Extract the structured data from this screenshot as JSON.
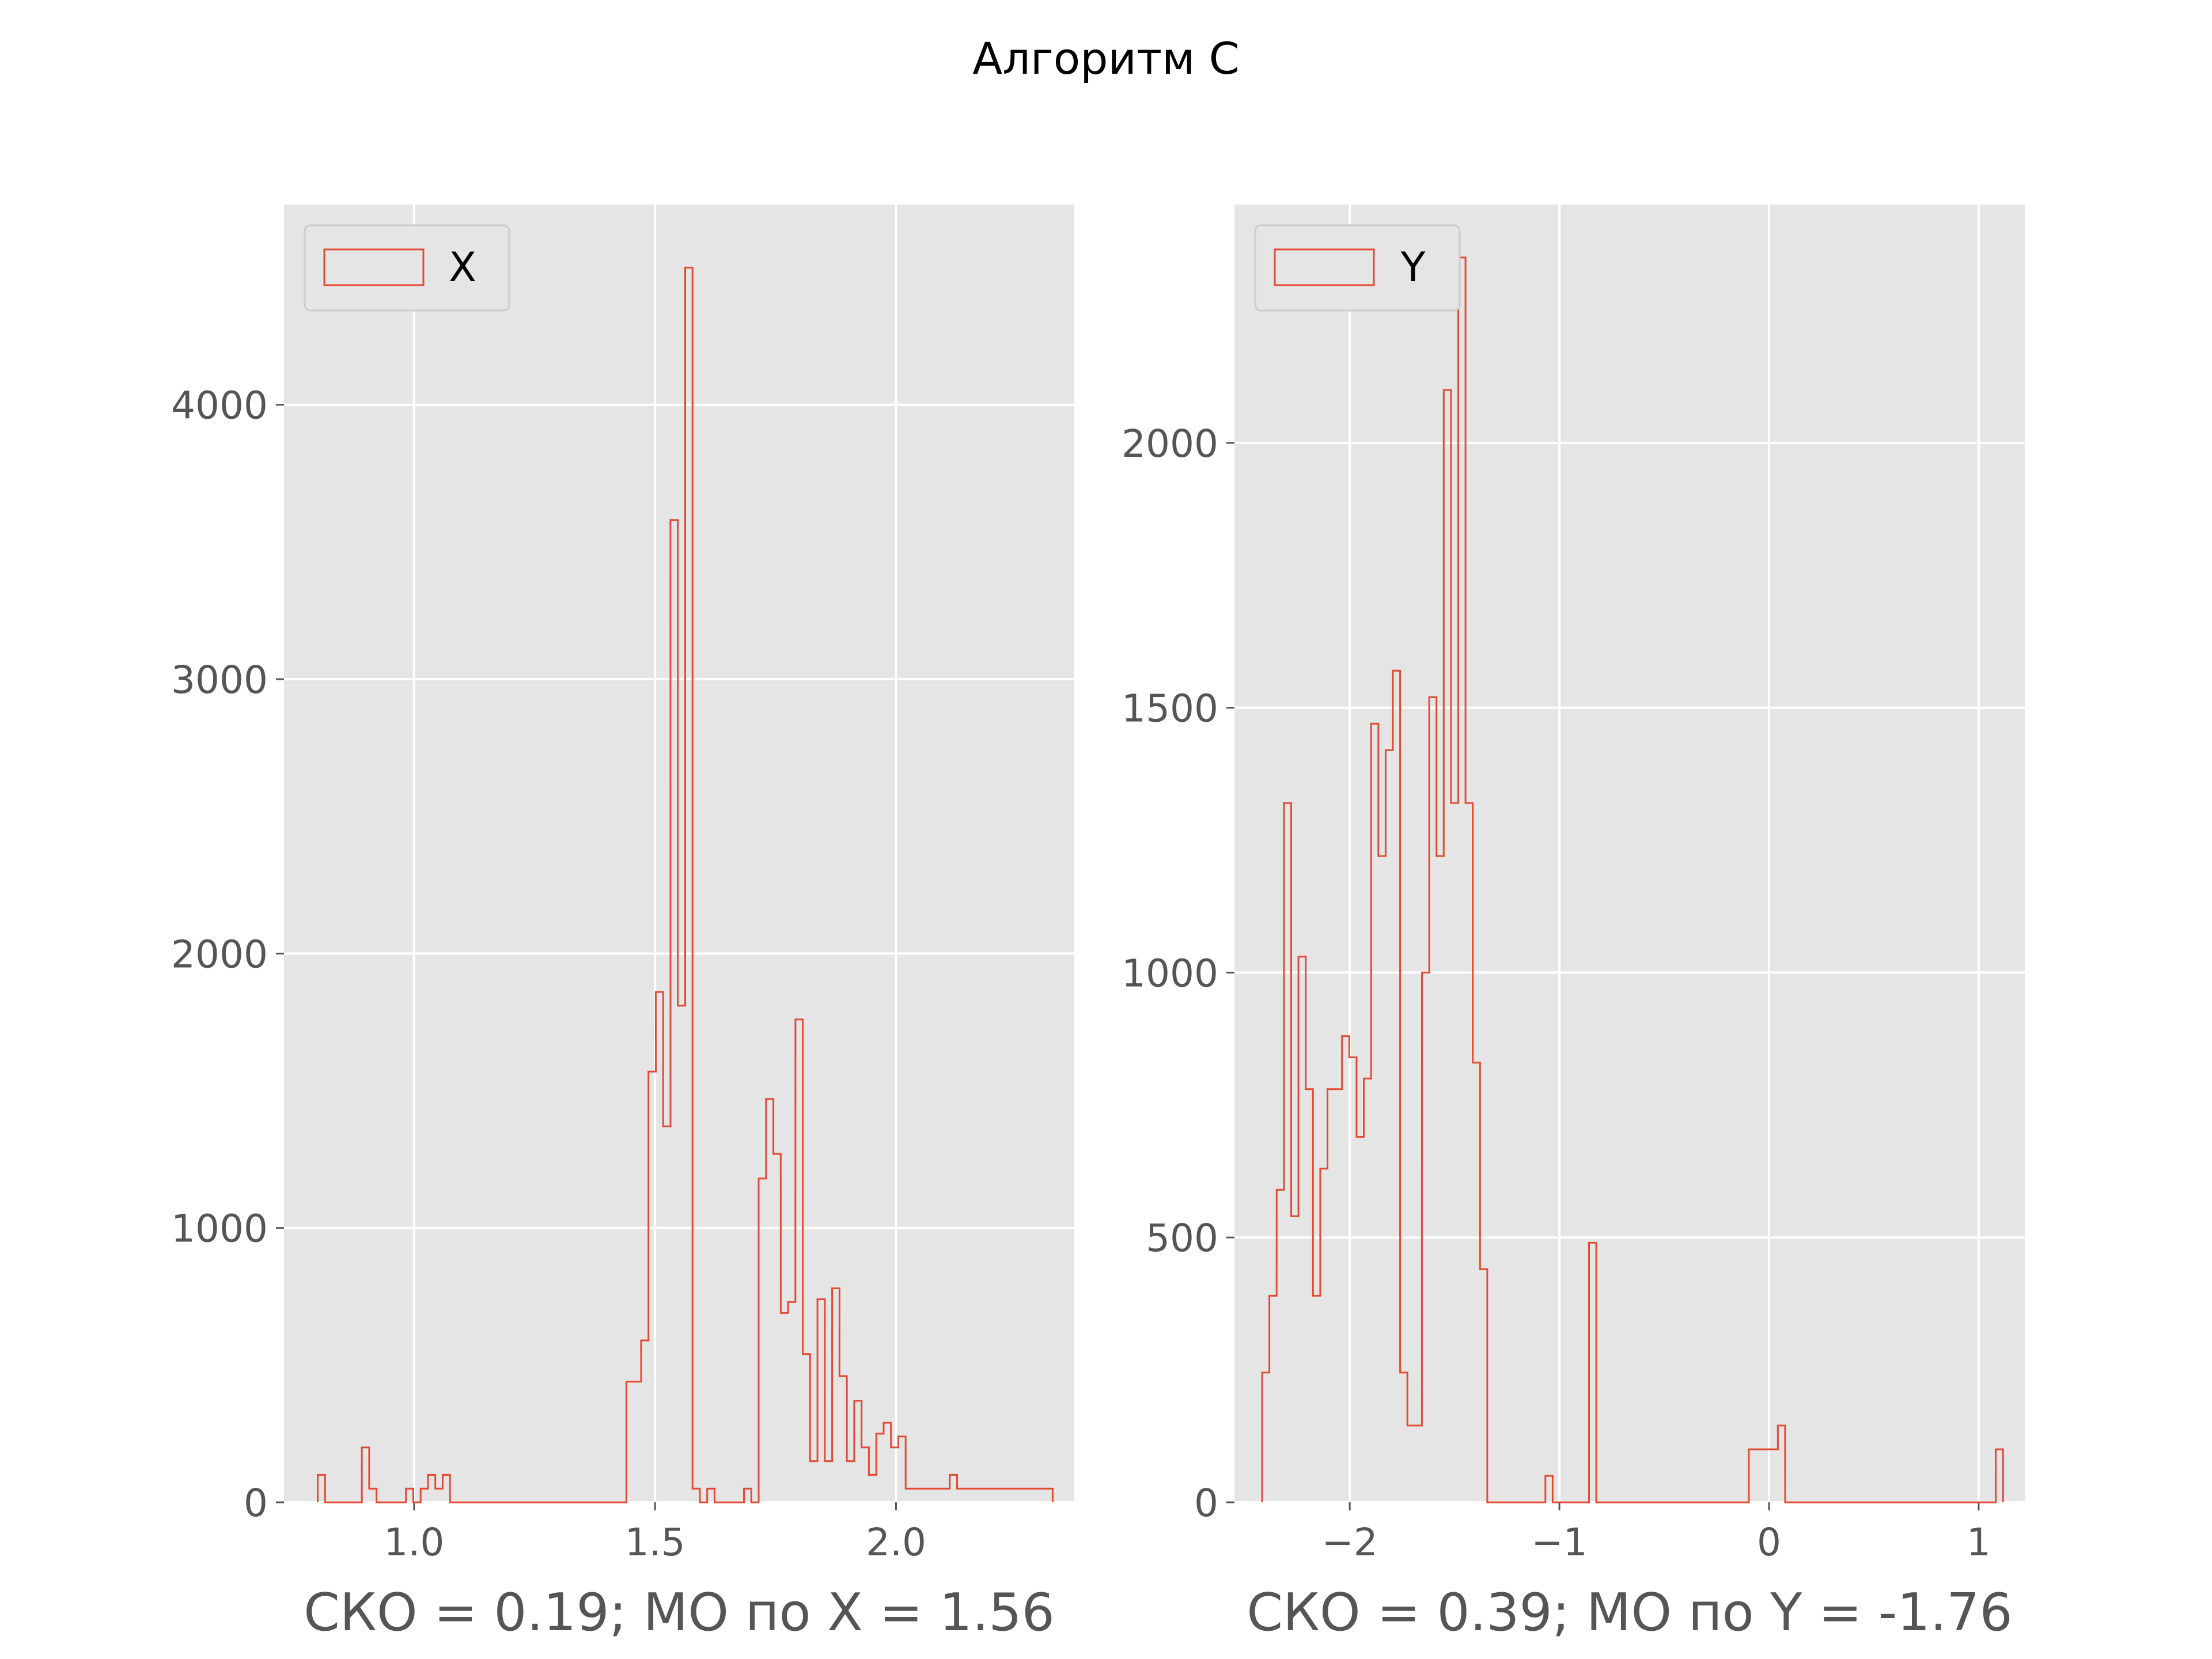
{
  "figure": {
    "title": "Алгоритм C"
  },
  "colors": {
    "axes_background": "#e5e5e5",
    "grid": "#ffffff",
    "series": "#e24a33",
    "tick_text": "#555555"
  },
  "chart_data": [
    {
      "type": "histogram",
      "histtype": "step",
      "legend": [
        "X"
      ],
      "legend_position": "upper-left",
      "xlabel": "СКО = 0.19; МО по X = 1.56",
      "ylabel": "",
      "xlim": [
        0.73,
        2.37
      ],
      "ylim": [
        0,
        4730
      ],
      "xticks": [
        1.0,
        1.5,
        2.0
      ],
      "xtick_labels": [
        "1.0",
        "1.5",
        "2.0"
      ],
      "yticks": [
        0,
        1000,
        2000,
        3000,
        4000
      ],
      "ytick_labels": [
        "0",
        "1000",
        "2000",
        "3000",
        "4000"
      ],
      "grid": true,
      "series": [
        {
          "name": "X",
          "x": [
            0.8,
            0.816,
            0.831,
            0.846,
            0.861,
            0.877,
            0.892,
            0.907,
            0.922,
            0.937,
            0.953,
            0.968,
            0.983,
            0.998,
            1.014,
            1.029,
            1.044,
            1.059,
            1.075,
            1.09,
            1.105,
            1.12,
            1.135,
            1.151,
            1.166,
            1.181,
            1.196,
            1.212,
            1.227,
            1.242,
            1.257,
            1.272,
            1.288,
            1.303,
            1.318,
            1.333,
            1.349,
            1.364,
            1.379,
            1.394,
            1.41,
            1.425,
            1.44,
            1.455,
            1.47,
            1.486,
            1.501,
            1.516,
            1.531,
            1.547,
            1.562,
            1.577,
            1.592,
            1.608,
            1.623,
            1.638,
            1.653,
            1.668,
            1.684,
            1.699,
            1.714,
            1.729,
            1.745,
            1.76,
            1.775,
            1.79,
            1.806,
            1.821,
            1.836,
            1.851,
            1.866,
            1.882,
            1.897,
            1.912,
            1.927,
            1.943,
            1.958,
            1.973,
            1.988,
            2.003,
            2.019,
            2.034,
            2.049,
            2.064,
            2.08,
            2.095,
            2.11,
            2.125,
            2.141,
            2.156,
            2.171,
            2.186,
            2.201,
            2.217,
            2.232,
            2.247,
            2.262,
            2.278,
            2.293,
            2.308
          ],
          "values": [
            100,
            0,
            0,
            0,
            0,
            0,
            0,
            0,
            0,
            0,
            0,
            0,
            0,
            0,
            0,
            0,
            0,
            0,
            0,
            0,
            200,
            50,
            0,
            0,
            0,
            0,
            0,
            0,
            0,
            0,
            0,
            0,
            0,
            0,
            0,
            0,
            0,
            0,
            0,
            0,
            0,
            0,
            0,
            0,
            0,
            0,
            0,
            0,
            0,
            0,
            0,
            0,
            0,
            0,
            0,
            0,
            0,
            0,
            0,
            0,
            0,
            0,
            0,
            0,
            0,
            0,
            0,
            0,
            0,
            0,
            0,
            0,
            0,
            0,
            0,
            0,
            0,
            0,
            0,
            0,
            0,
            0,
            0,
            0,
            0,
            0,
            0,
            0,
            0,
            0,
            0,
            0,
            0,
            0,
            0,
            0,
            0,
            0,
            0,
            0
          ]
        }
      ]
    },
    {
      "type": "histogram",
      "histtype": "step",
      "legend": [
        "Y"
      ],
      "legend_position": "upper-left",
      "xlabel": "СКО = 0.39; МО по Y = -1.76",
      "ylabel": "",
      "xlim": [
        -2.55,
        1.22
      ],
      "ylim": [
        0,
        2450
      ],
      "xticks": [
        -2,
        -1,
        0,
        1
      ],
      "xtick_labels": [
        "−2",
        "−1",
        "0",
        "1"
      ],
      "yticks": [
        0,
        500,
        1000,
        1500,
        2000
      ],
      "ytick_labels": [
        "0",
        "500",
        "1000",
        "1500",
        "2000"
      ],
      "grid": true,
      "series": [
        {
          "name": "Y",
          "x": [
            -2.418,
            -2.383,
            -2.349,
            -2.314,
            -2.279,
            -2.245,
            -2.21,
            -2.175,
            -2.141,
            -2.106,
            -2.071,
            -2.037,
            -2.002,
            -1.967,
            -1.933,
            -1.898,
            -1.863,
            -1.829,
            -1.794,
            -1.759,
            -1.725,
            -1.69,
            -1.655,
            -1.621,
            -1.586,
            -1.551,
            -1.517,
            -1.482,
            -1.447,
            -1.413,
            -1.378,
            -1.343,
            -1.309,
            -1.274,
            -1.239,
            -1.205,
            -1.17,
            -1.135,
            -1.101,
            -1.066,
            -1.031,
            -0.997,
            -0.962,
            -0.927,
            -0.893,
            -0.858,
            -0.823,
            -0.789,
            -0.754,
            -0.719,
            -0.685,
            -0.65,
            -0.615,
            -0.581,
            -0.546,
            -0.511,
            -0.477,
            -0.442,
            -0.407,
            -0.373,
            -0.338,
            -0.303,
            -0.269,
            -0.234,
            -0.199,
            -0.165,
            -0.13,
            -0.095,
            -0.061,
            -0.026,
            0.009,
            0.043,
            0.078,
            0.113,
            0.147,
            0.182,
            0.217,
            0.251,
            0.286,
            0.321,
            0.355,
            0.39,
            0.425,
            0.459,
            0.494,
            0.529,
            0.563,
            0.598,
            0.633,
            0.667,
            0.702,
            0.737,
            0.771,
            0.806,
            0.841,
            0.875,
            0.91,
            0.945,
            0.979,
            1.014,
            1.049
          ],
          "values": [
            245,
            390,
            590,
            1320,
            540,
            1030,
            780,
            390,
            630,
            780,
            780,
            880,
            840,
            690,
            800,
            1470,
            1220,
            1420,
            1570,
            245,
            145,
            145,
            1000,
            1520,
            1220,
            2100,
            1320,
            2350,
            1320,
            830,
            440,
            0,
            0,
            0,
            0,
            0,
            0,
            0,
            0,
            0,
            0,
            0,
            0,
            0,
            0,
            0,
            0,
            0,
            0,
            0,
            0,
            0,
            0,
            0,
            0,
            0,
            0,
            0,
            0,
            0,
            0,
            0,
            0,
            0,
            0,
            0,
            0,
            0,
            0,
            0,
            0,
            0,
            0,
            0,
            0,
            0,
            0,
            0,
            0,
            0,
            0,
            0,
            0,
            0,
            0,
            0,
            0,
            0,
            0,
            0,
            0,
            0,
            0,
            0,
            0,
            0,
            0,
            0,
            0,
            0,
            0
          ]
        }
      ]
    }
  ]
}
